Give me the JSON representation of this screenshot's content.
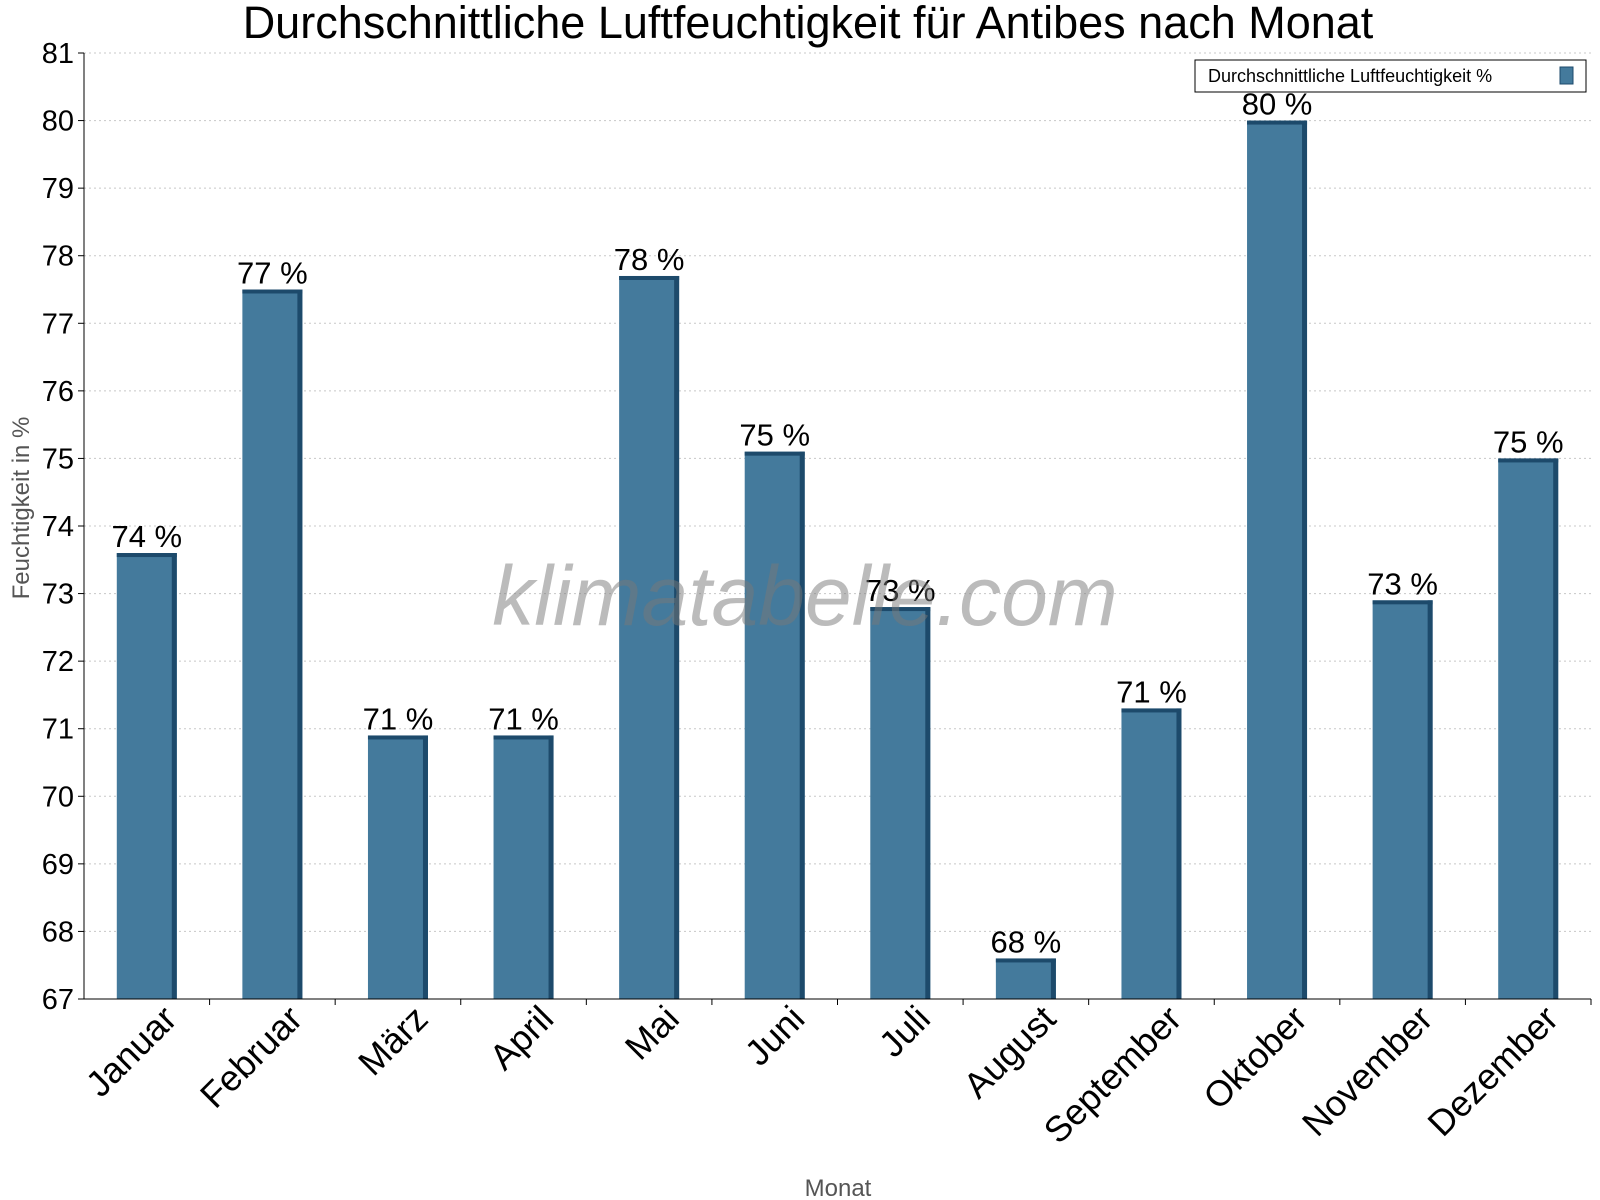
{
  "chart_data": {
    "type": "bar",
    "title": "Durchschnittliche Luftfeuchtigkeit für Antibes nach Monat",
    "xlabel": "Monat",
    "ylabel": "Feuchtigkeit in %",
    "ylim": [
      67,
      81
    ],
    "yticks": [
      67,
      68,
      69,
      70,
      71,
      72,
      73,
      74,
      75,
      76,
      77,
      78,
      79,
      80,
      81
    ],
    "grid": true,
    "legend_position": "top-right",
    "categories": [
      "Januar",
      "Februar",
      "März",
      "April",
      "Mai",
      "Juni",
      "Juli",
      "August",
      "September",
      "Oktober",
      "November",
      "Dezember"
    ],
    "series": [
      {
        "name": "Durchschnittliche Luftfeuchtigkeit %",
        "values": [
          73.6,
          77.5,
          70.9,
          70.9,
          77.7,
          75.1,
          72.8,
          67.6,
          71.3,
          80.0,
          72.9,
          75.0
        ],
        "labels": [
          "74 %",
          "77 %",
          "71 %",
          "71 %",
          "78 %",
          "75 %",
          "73 %",
          "68 %",
          "71 %",
          "80 %",
          "73 %",
          "75 %"
        ]
      }
    ],
    "colors": {
      "bar": "#447a9c",
      "bar_side": "#1d4a6b",
      "grid": "#c8c8c8"
    },
    "watermark": "klimatabelle.com"
  }
}
